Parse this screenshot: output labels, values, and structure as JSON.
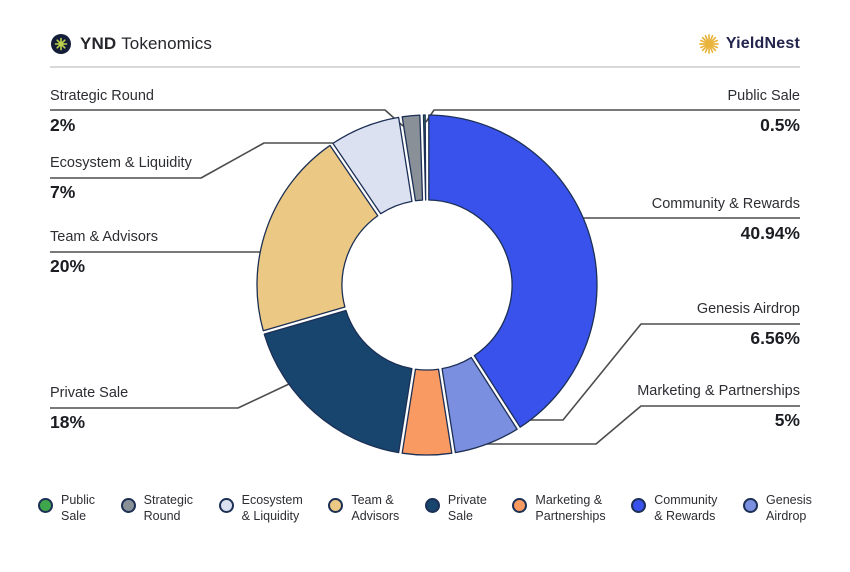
{
  "header": {
    "title_bold": "YND",
    "title_rest": "Tokenomics",
    "brand": "YieldNest",
    "brand_color": "#23254d",
    "burst_color": "#e9b43d",
    "coin_bg": "#141e38",
    "coin_glyph_color": "#bfd24e"
  },
  "chart_data": {
    "type": "pie",
    "title": "YND Tokenomics",
    "donut": true,
    "start_angle_deg": 0,
    "direction": "clockwise",
    "outline_color": "#1c2f54",
    "segments": [
      {
        "label": "Community & Rewards",
        "value": 40.94,
        "display": "40.94%",
        "color": "#3952eb"
      },
      {
        "label": "Genesis Airdrop",
        "value": 6.56,
        "display": "6.56%",
        "color": "#7b8fe0"
      },
      {
        "label": "Marketing & Partnerships",
        "value": 5,
        "display": "5%",
        "color": "#f89a62"
      },
      {
        "label": "Private Sale",
        "value": 18,
        "display": "18%",
        "color": "#17456e"
      },
      {
        "label": "Team & Advisors",
        "value": 20,
        "display": "20%",
        "color": "#ebc985"
      },
      {
        "label": "Ecosystem & Liquidity",
        "value": 7,
        "display": "7%",
        "color": "#dce1f2"
      },
      {
        "label": "Strategic Round",
        "value": 2,
        "display": "2%",
        "color": "#8a9097"
      },
      {
        "label": "Public Sale",
        "value": 0.5,
        "display": "0.5%",
        "color": "#3fa64c"
      }
    ]
  },
  "callouts": {
    "left": [
      {
        "label": "Strategic Round",
        "pct": "2%"
      },
      {
        "label": "Ecosystem & Liquidity",
        "pct": "7%"
      },
      {
        "label": "Team & Advisors",
        "pct": "20%"
      },
      {
        "label": "Private Sale",
        "pct": "18%"
      }
    ],
    "right": [
      {
        "label": "Public Sale",
        "pct": "0.5%"
      },
      {
        "label": "Community & Rewards",
        "pct": "40.94%"
      },
      {
        "label": "Genesis Airdrop",
        "pct": "6.56%"
      },
      {
        "label": "Marketing & Partnerships",
        "pct": "5%"
      }
    ]
  },
  "legend": [
    {
      "line1": "Public",
      "line2": "Sale",
      "color": "#3fa64c"
    },
    {
      "line1": "Strategic",
      "line2": "Round",
      "color": "#8a9097"
    },
    {
      "line1": "Ecosystem",
      "line2": "& Liquidity",
      "color": "#dce1f2"
    },
    {
      "line1": "Team &",
      "line2": "Advisors",
      "color": "#ebc985"
    },
    {
      "line1": "Private",
      "line2": "Sale",
      "color": "#17456e"
    },
    {
      "line1": "Marketing &",
      "line2": "Partnerships",
      "color": "#f89a62"
    },
    {
      "line1": "Community",
      "line2": "& Rewards",
      "color": "#3952eb"
    },
    {
      "line1": "Genesis",
      "line2": "Airdrop",
      "color": "#7b8fe0"
    }
  ]
}
